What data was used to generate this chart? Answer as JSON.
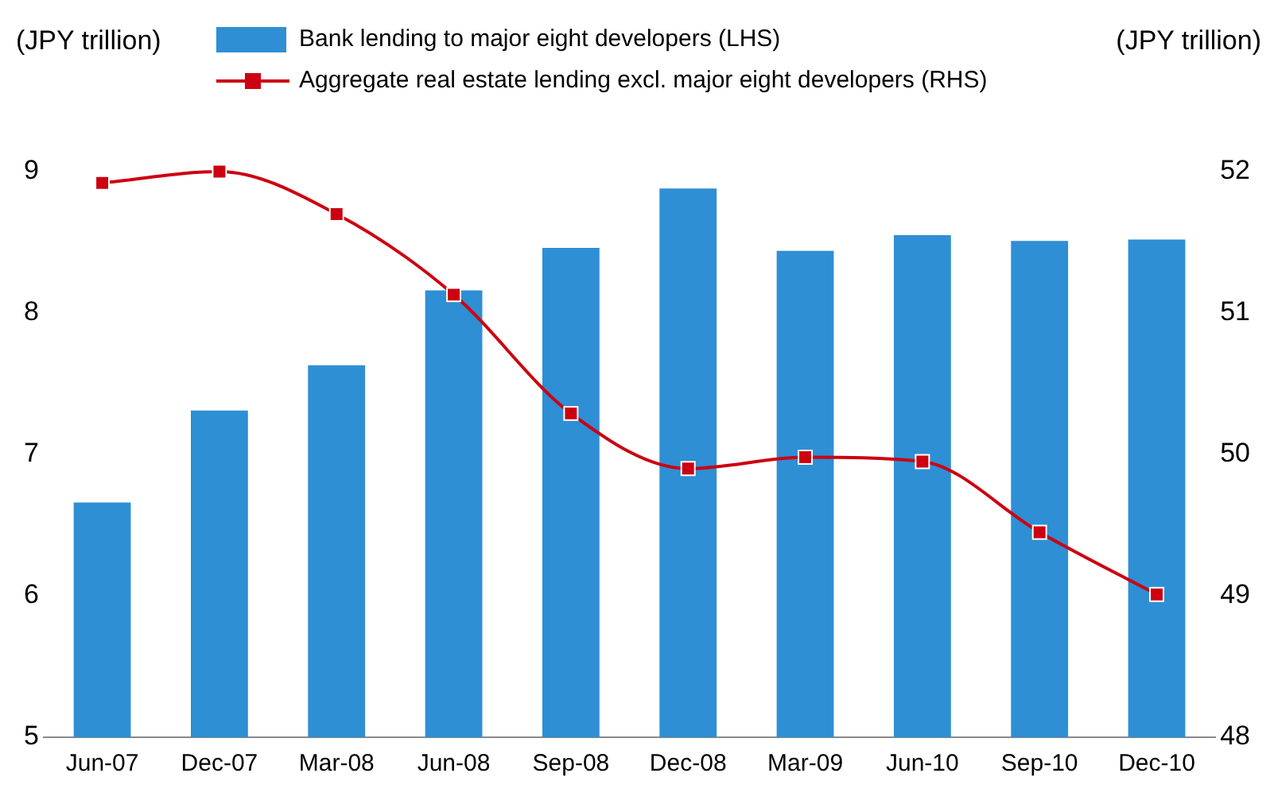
{
  "chart_data": {
    "type": "bar",
    "ylabel": "(JPY trillion)",
    "y2label": "(JPY trillion)",
    "categories": [
      "Jun-07",
      "Dec-07",
      "Mar-08",
      "Jun-08",
      "Sep-08",
      "Dec-08",
      "Mar-09",
      "Jun-10",
      "Sep-10",
      "Dec-10"
    ],
    "series": [
      {
        "name": "Bank lending to major eight developers (LHS)",
        "color": "#2e8fd4",
        "values": [
          6.66,
          7.31,
          7.63,
          8.16,
          8.46,
          8.88,
          8.44,
          8.55,
          8.51,
          8.52
        ]
      },
      {
        "name": "Aggregate real estate lending excl. major eight developers (RHS)",
        "type": "line",
        "axis": "y2",
        "color": "#cc0011",
        "marker": "square",
        "values": [
          51.92,
          52.0,
          51.7,
          51.13,
          50.29,
          49.9,
          49.98,
          49.95,
          49.45,
          49.01
        ]
      }
    ],
    "ylim": [
      5,
      9
    ],
    "yticks": [
      5,
      6,
      7,
      8,
      9
    ],
    "y2lim": [
      48,
      52
    ],
    "y2ticks": [
      48,
      49,
      50,
      51,
      52
    ],
    "grid": false,
    "legend": "top"
  }
}
